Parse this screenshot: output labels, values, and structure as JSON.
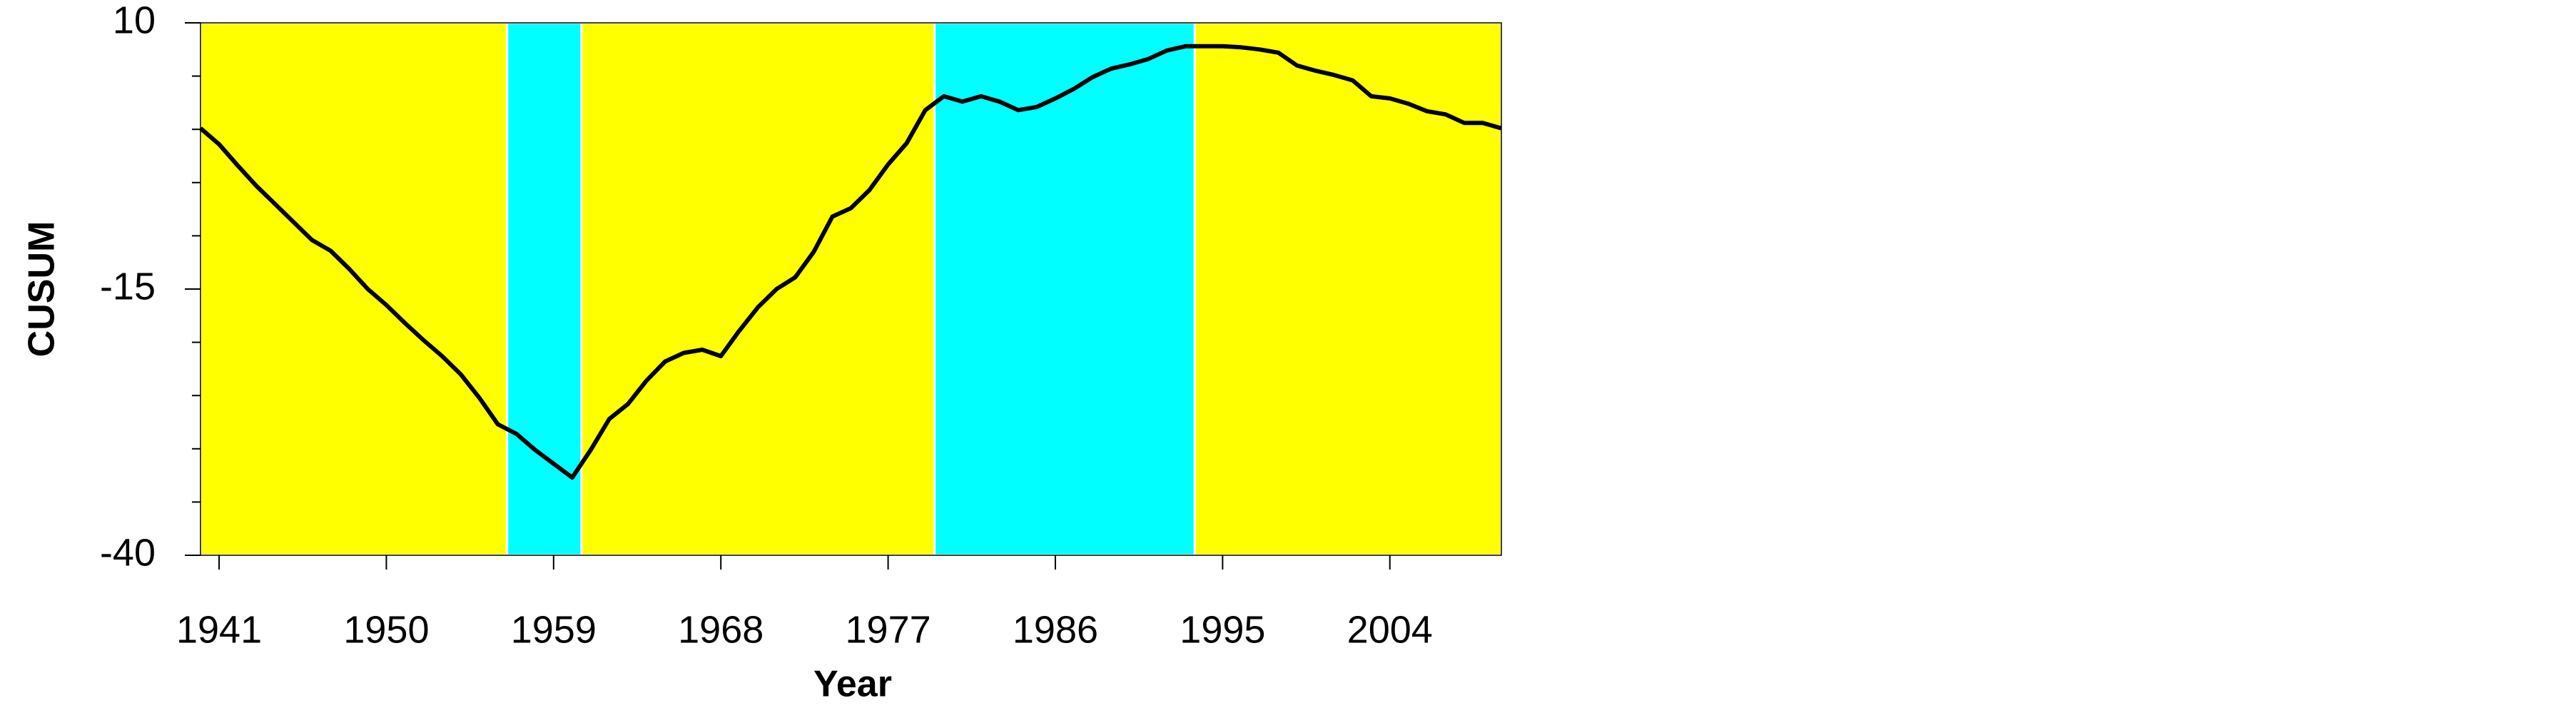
{
  "chart_data": {
    "type": "line",
    "xlabel": "Year",
    "ylabel": "CUSUM",
    "x": [
      1940,
      1941,
      1942,
      1943,
      1944,
      1945,
      1946,
      1947,
      1948,
      1949,
      1950,
      1951,
      1952,
      1953,
      1954,
      1955,
      1956,
      1957,
      1958,
      1959,
      1960,
      1961,
      1962,
      1963,
      1964,
      1965,
      1966,
      1967,
      1968,
      1969,
      1970,
      1971,
      1972,
      1973,
      1974,
      1975,
      1976,
      1977,
      1978,
      1979,
      1980,
      1981,
      1982,
      1983,
      1984,
      1985,
      1986,
      1987,
      1988,
      1989,
      1990,
      1991,
      1992,
      1993,
      1994,
      1995,
      1996,
      1997,
      1998,
      1999,
      2000,
      2001,
      2002,
      2003,
      2004,
      2005,
      2006,
      2007,
      2008,
      2009,
      2010
    ],
    "series": [
      {
        "color": "#000000",
        "values": [
          0.1,
          -1.4,
          -3.4,
          -5.3,
          -7.0,
          -8.7,
          -10.4,
          -11.4,
          -13.1,
          -15.0,
          -16.5,
          -18.2,
          -19.8,
          -21.3,
          -23.0,
          -25.2,
          -27.7,
          -28.6,
          -30.1,
          -31.4,
          -32.7,
          -30.1,
          -27.2,
          -25.8,
          -23.6,
          -21.8,
          -21.0,
          -20.7,
          -21.3,
          -18.9,
          -16.7,
          -15.0,
          -13.9,
          -11.5,
          -8.2,
          -7.4,
          -5.7,
          -3.3,
          -1.3,
          1.8,
          3.1,
          2.6,
          3.1,
          2.6,
          1.8,
          2.1,
          2.9,
          3.8,
          4.9,
          5.7,
          6.1,
          6.6,
          7.4,
          7.8,
          7.8,
          7.8,
          7.7,
          7.5,
          7.2,
          6.0,
          5.5,
          5.1,
          4.6,
          3.1,
          2.9,
          2.4,
          1.7,
          1.4,
          0.6,
          0.6,
          0.1
        ]
      }
    ],
    "regimes": [
      {
        "start": 1940,
        "end": 1956.5,
        "color": "#ffff00"
      },
      {
        "start": 1956.5,
        "end": 1960.5,
        "color": "#00ffff"
      },
      {
        "start": 1960.5,
        "end": 1979.5,
        "color": "#ffff00"
      },
      {
        "start": 1979.5,
        "end": 1993.5,
        "color": "#00ffff"
      },
      {
        "start": 1993.5,
        "end": 2010,
        "color": "#ffff00"
      }
    ],
    "xlim": [
      1940,
      2010
    ],
    "xticks": [
      1941,
      1950,
      1959,
      1968,
      1977,
      1986,
      1995,
      2004
    ],
    "ylim": [
      -40,
      10
    ],
    "yticks": [
      10,
      -15,
      -40
    ],
    "yminor_ticks": [
      5,
      0,
      -5,
      -10,
      -20,
      -25,
      -30,
      -35
    ]
  }
}
